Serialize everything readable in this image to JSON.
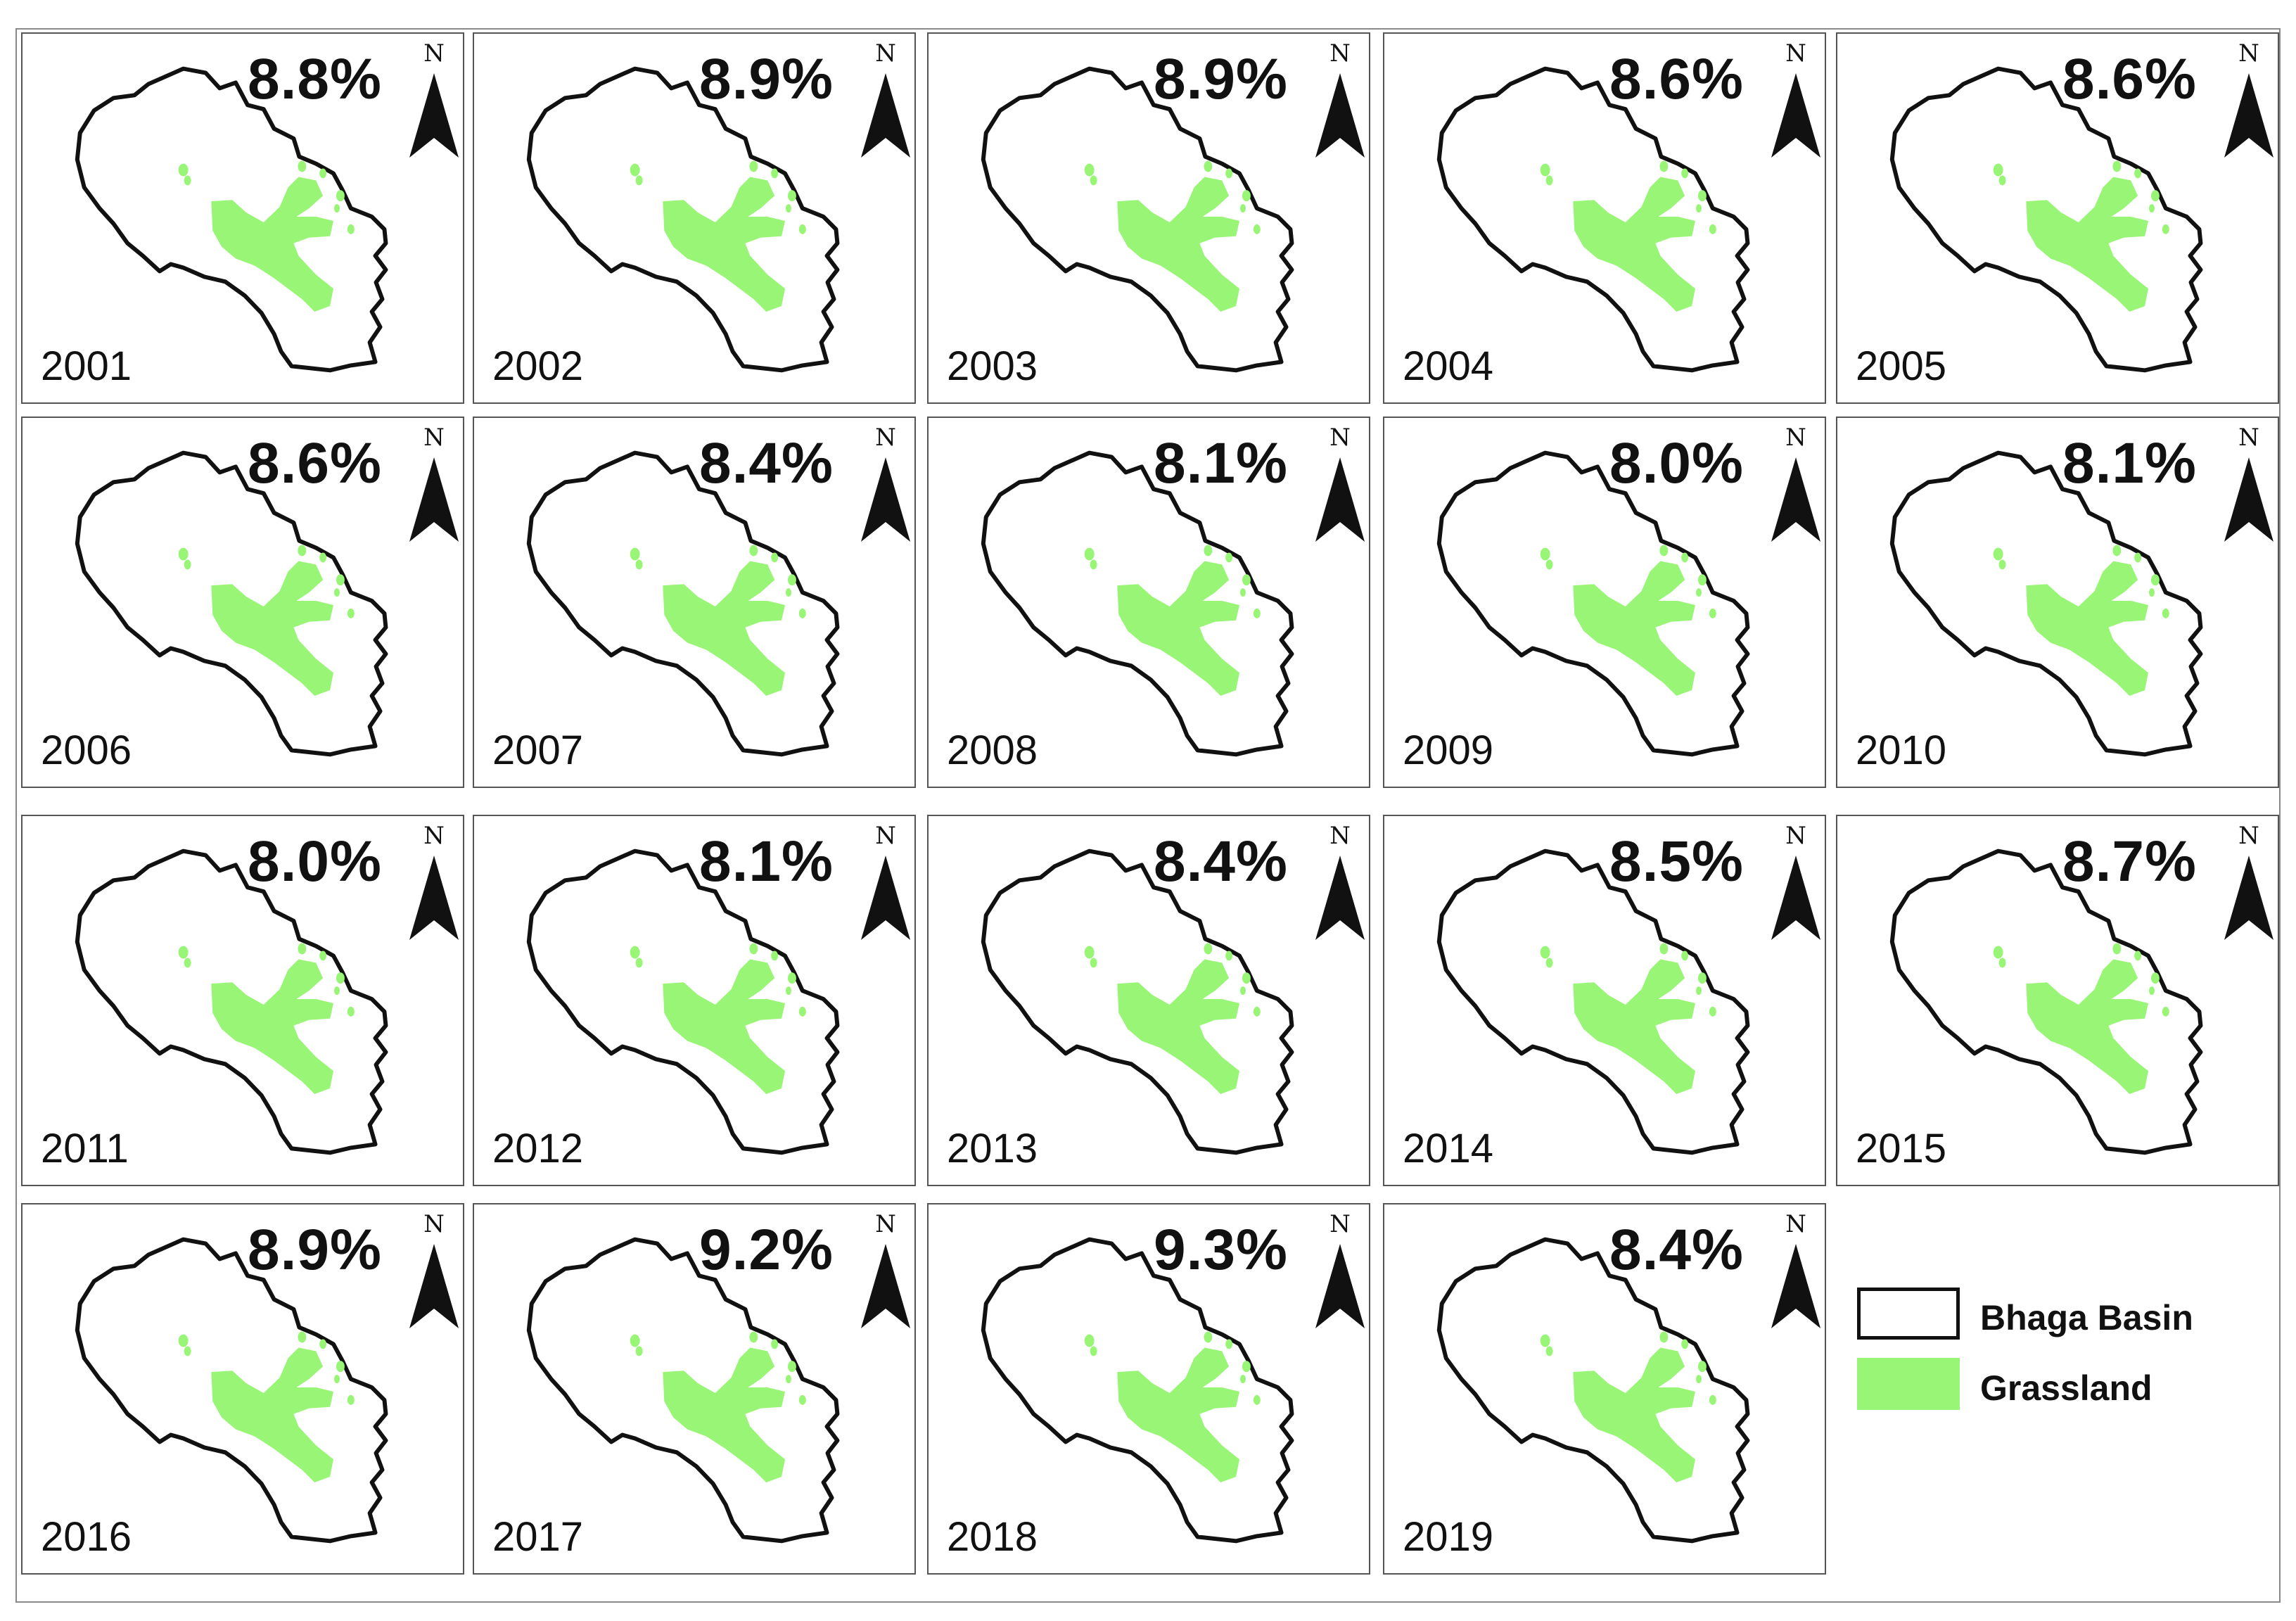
{
  "panels": [
    {
      "year": "2001",
      "pct": "8.8%"
    },
    {
      "year": "2002",
      "pct": "8.9%"
    },
    {
      "year": "2003",
      "pct": "8.9%"
    },
    {
      "year": "2004",
      "pct": "8.6%"
    },
    {
      "year": "2005",
      "pct": "8.6%"
    },
    {
      "year": "2006",
      "pct": "8.6%"
    },
    {
      "year": "2007",
      "pct": "8.4%"
    },
    {
      "year": "2008",
      "pct": "8.1%"
    },
    {
      "year": "2009",
      "pct": "8.0%"
    },
    {
      "year": "2010",
      "pct": "8.1%"
    },
    {
      "year": "2011",
      "pct": "8.0%"
    },
    {
      "year": "2012",
      "pct": "8.1%"
    },
    {
      "year": "2013",
      "pct": "8.4%"
    },
    {
      "year": "2014",
      "pct": "8.5%"
    },
    {
      "year": "2015",
      "pct": "8.7%"
    },
    {
      "year": "2016",
      "pct": "8.9%"
    },
    {
      "year": "2017",
      "pct": "9.2%"
    },
    {
      "year": "2018",
      "pct": "9.3%"
    },
    {
      "year": "2019",
      "pct": "8.4%"
    }
  ],
  "north_label": "N",
  "legend": {
    "basin_label": "Bhaga Basin",
    "grassland_label": "Grassland"
  },
  "colors": {
    "grassland": "#98f575",
    "boundary": "#111111"
  }
}
